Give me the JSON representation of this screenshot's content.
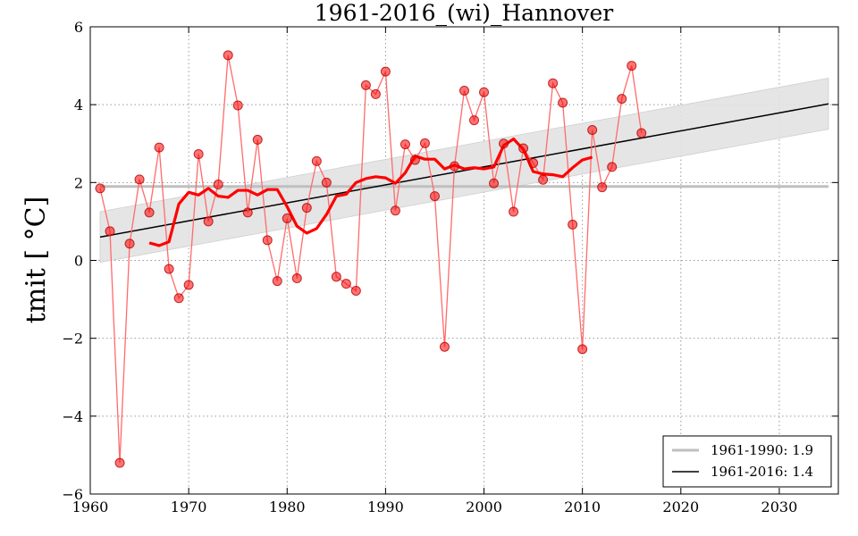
{
  "chart_data": {
    "type": "line",
    "title": "1961-2016_(wi)_Hannover",
    "xlabel": "",
    "ylabel": "tmit [ °C]",
    "xlim": [
      1960,
      2036
    ],
    "ylim": [
      -6,
      6
    ],
    "x_ticks": [
      1960,
      1970,
      1980,
      1990,
      2000,
      2010,
      2020,
      2030
    ],
    "y_ticks": [
      -6,
      -4,
      -2,
      0,
      2,
      4,
      6
    ],
    "grid": true,
    "legend_placement": "bottom-right",
    "years": [
      1961,
      1962,
      1963,
      1964,
      1965,
      1966,
      1967,
      1968,
      1969,
      1970,
      1971,
      1972,
      1973,
      1974,
      1975,
      1976,
      1977,
      1978,
      1979,
      1980,
      1981,
      1982,
      1983,
      1984,
      1985,
      1986,
      1987,
      1988,
      1989,
      1990,
      1991,
      1992,
      1993,
      1994,
      1995,
      1996,
      1997,
      1998,
      1999,
      2000,
      2001,
      2002,
      2003,
      2004,
      2005,
      2006,
      2007,
      2008,
      2009,
      2010,
      2011,
      2012,
      2013,
      2014,
      2015,
      2016
    ],
    "values": [
      1.85,
      0.75,
      -5.2,
      0.43,
      2.08,
      1.23,
      2.9,
      -0.22,
      -0.97,
      -0.63,
      2.73,
      1.0,
      1.95,
      5.27,
      3.98,
      1.23,
      3.1,
      0.52,
      -0.53,
      1.08,
      -0.46,
      1.35,
      2.55,
      2.0,
      -0.42,
      -0.6,
      -0.78,
      4.5,
      4.27,
      4.85,
      1.28,
      2.98,
      2.58,
      3.01,
      1.65,
      -2.22,
      2.42,
      4.36,
      3.6,
      4.32,
      1.98,
      3.0,
      1.25,
      2.88,
      2.5,
      2.07,
      4.55,
      4.05,
      0.92,
      -2.28,
      3.35,
      1.88,
      2.4,
      4.15,
      5.0,
      3.27
    ],
    "moving_average": {
      "years": [
        1966,
        1967,
        1968,
        1969,
        1970,
        1971,
        1972,
        1973,
        1974,
        1975,
        1976,
        1977,
        1978,
        1979,
        1980,
        1981,
        1982,
        1983,
        1984,
        1985,
        1986,
        1987,
        1988,
        1989,
        1990,
        1991,
        1992,
        1993,
        1994,
        1995,
        1996,
        1997,
        1998,
        1999,
        2000,
        2001,
        2002,
        2003,
        2004,
        2005,
        2006,
        2007,
        2008,
        2009,
        2010,
        2011
      ],
      "values": [
        0.45,
        0.38,
        0.48,
        1.45,
        1.75,
        1.68,
        1.85,
        1.65,
        1.62,
        1.8,
        1.8,
        1.68,
        1.82,
        1.82,
        1.38,
        0.88,
        0.7,
        0.82,
        1.18,
        1.65,
        1.7,
        2.0,
        2.1,
        2.15,
        2.12,
        1.98,
        2.25,
        2.68,
        2.6,
        2.6,
        2.35,
        2.45,
        2.35,
        2.38,
        2.35,
        2.4,
        2.95,
        3.12,
        2.85,
        2.28,
        2.22,
        2.2,
        2.15,
        2.38,
        2.58,
        2.65
      ]
    },
    "series": [
      {
        "name": "1961-1990: 1.9",
        "type": "hline",
        "y": 1.9,
        "x_range": [
          1961,
          2035
        ]
      },
      {
        "name": "1961-2016: 1.4",
        "type": "trend",
        "x_range": [
          1961,
          2035
        ],
        "y_range": [
          0.6,
          4.02
        ]
      }
    ],
    "confidence_band": {
      "x": [
        1961,
        2035
      ],
      "upper": [
        1.25,
        4.68
      ],
      "lower": [
        -0.05,
        3.37
      ]
    },
    "colors": {
      "points": "#ff0000",
      "points_line": "#ff6b6b",
      "moving_average": "#ff0000",
      "hline": "#bfbfbf",
      "trend": "#000000",
      "band": "#e2e2e2"
    }
  }
}
